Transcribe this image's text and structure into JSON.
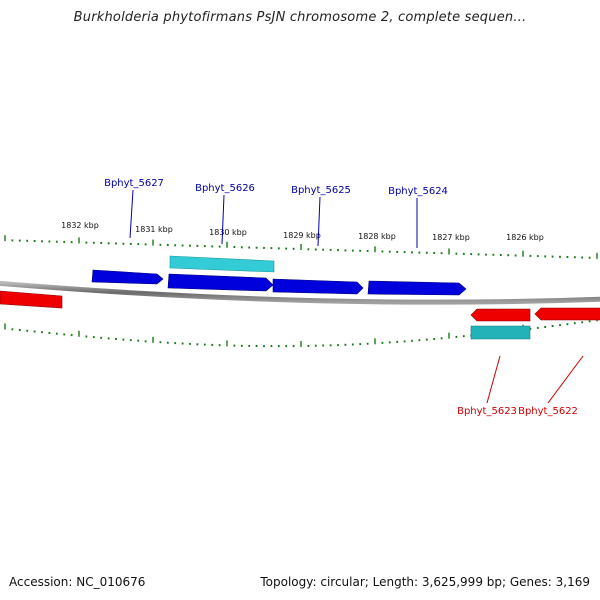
{
  "title": "Burkholderia phytofirmans PsJN chromosome 2, complete sequen...",
  "colors": {
    "forward_gene": "#0000dd",
    "forward_gene_highlight": "#33ccd6",
    "reverse_gene": "#ee0000",
    "reverse_gene_highlight": "#22b2b8",
    "backbone": "#888888",
    "ticks": "#1a7a1a",
    "forward_label": "#0000aa",
    "reverse_label": "#cc0000"
  },
  "scale": {
    "unit": "kbp",
    "ticks": [
      {
        "kbp": 1832,
        "label": "1832 kbp"
      },
      {
        "kbp": 1831,
        "label": "1831 kbp"
      },
      {
        "kbp": 1830,
        "label": "1830 kbp"
      },
      {
        "kbp": 1829,
        "label": "1829 kbp"
      },
      {
        "kbp": 1828,
        "label": "1828 kbp"
      },
      {
        "kbp": 1827,
        "label": "1827 kbp"
      },
      {
        "kbp": 1826,
        "label": "1826 kbp"
      }
    ]
  },
  "genes": {
    "forward": [
      {
        "label": "Bphyt_5627",
        "color": "forward_gene"
      },
      {
        "label": "Bphyt_5626",
        "color": "forward_gene"
      },
      {
        "label": "Bphyt_5625",
        "color": "forward_gene"
      },
      {
        "label": "Bphyt_5624",
        "color": "forward_gene"
      }
    ],
    "reverse": [
      {
        "label": "Bphyt_5623",
        "color": "reverse_gene"
      },
      {
        "label": "Bphyt_5622",
        "color": "reverse_gene"
      }
    ]
  },
  "footer": {
    "accession": "Accession: NC_010676",
    "summary": "Topology: circular; Length: 3,625,999 bp; Genes: 3,169"
  }
}
